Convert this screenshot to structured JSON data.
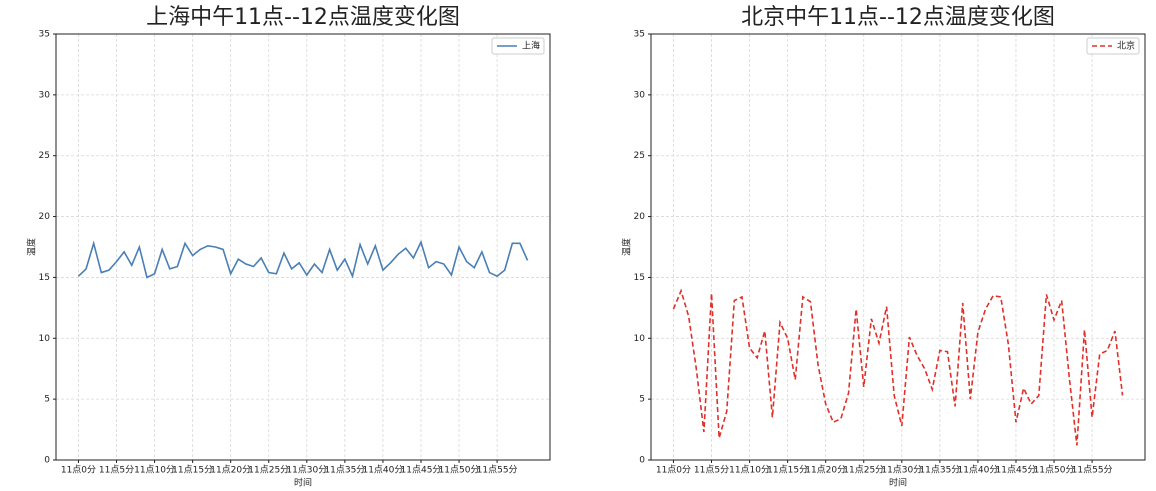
{
  "chart_data": [
    {
      "type": "line",
      "title": "上海中午11点--12点温度变化图",
      "x_label": "时间",
      "y_label": "温度",
      "categories": [
        "11点0分",
        null,
        null,
        null,
        null,
        "11点5分",
        null,
        null,
        null,
        null,
        "11点10分",
        null,
        null,
        null,
        null,
        "11点15分",
        null,
        null,
        null,
        null,
        "11点20分",
        null,
        null,
        null,
        null,
        "11点25分",
        null,
        null,
        null,
        null,
        "11点30分",
        null,
        null,
        null,
        null,
        "11点35分",
        null,
        null,
        null,
        null,
        "11点40分",
        null,
        null,
        null,
        null,
        "11点45分",
        null,
        null,
        null,
        null,
        "11点50分",
        null,
        null,
        null,
        null,
        "11点55分",
        null,
        null,
        null,
        null
      ],
      "series": [
        {
          "name": "上海",
          "color": "#4a7fb5",
          "line_style": "solid",
          "values": [
            15.1,
            15.7,
            17.8,
            15.4,
            15.6,
            16.3,
            17.1,
            16.0,
            17.5,
            15.0,
            15.3,
            17.3,
            15.7,
            15.9,
            17.8,
            16.8,
            17.3,
            17.6,
            17.5,
            17.3,
            15.3,
            16.5,
            16.1,
            15.9,
            16.6,
            15.4,
            15.3,
            17.0,
            15.7,
            16.2,
            15.2,
            16.1,
            15.4,
            17.3,
            15.6,
            16.5,
            15.1,
            17.7,
            16.1,
            17.6,
            15.6,
            16.2,
            16.9,
            17.4,
            16.6,
            17.9,
            15.8,
            16.3,
            16.1,
            15.2,
            17.5,
            16.3,
            15.8,
            17.1,
            15.4,
            15.1,
            15.6,
            17.8,
            17.8,
            16.4
          ]
        }
      ],
      "ylim": [
        0,
        35
      ],
      "yticks": [
        0,
        5,
        10,
        15,
        20,
        25,
        30,
        35
      ],
      "grid": true,
      "legend": "upper-right"
    },
    {
      "type": "line",
      "title": "北京中午11点--12点温度变化图",
      "x_label": "时间",
      "y_label": "温度",
      "categories": [
        "11点0分",
        null,
        null,
        null,
        null,
        "11点5分",
        null,
        null,
        null,
        null,
        "11点10分",
        null,
        null,
        null,
        null,
        "11点15分",
        null,
        null,
        null,
        null,
        "11点20分",
        null,
        null,
        null,
        null,
        "11点25分",
        null,
        null,
        null,
        null,
        "11点30分",
        null,
        null,
        null,
        null,
        "11点35分",
        null,
        null,
        null,
        null,
        "11点40分",
        null,
        null,
        null,
        null,
        "11点45分",
        null,
        null,
        null,
        null,
        "11点50分",
        null,
        null,
        null,
        null,
        "11点55分",
        null,
        null,
        null,
        null
      ],
      "series": [
        {
          "name": "北京",
          "color": "#e0302a",
          "line_style": "dashed",
          "values": [
            12.4,
            13.9,
            11.8,
            7.5,
            2.3,
            13.7,
            1.8,
            4.0,
            13.1,
            13.4,
            9.2,
            8.4,
            10.6,
            3.5,
            11.3,
            10.0,
            6.6,
            13.4,
            13.0,
            7.8,
            4.6,
            3.1,
            3.4,
            5.5,
            12.4,
            6.0,
            11.6,
            9.6,
            12.6,
            5.3,
            2.8,
            10.1,
            8.6,
            7.5,
            5.8,
            9.0,
            8.9,
            4.4,
            12.9,
            5.0,
            10.5,
            12.4,
            13.5,
            13.4,
            9.5,
            3.1,
            5.9,
            4.6,
            5.3,
            13.6,
            11.5,
            13.1,
            6.8,
            1.2,
            10.7,
            3.5,
            8.7,
            9.0,
            10.6,
            5.3
          ]
        }
      ],
      "ylim": [
        0,
        35
      ],
      "yticks": [
        0,
        5,
        10,
        15,
        20,
        25,
        30,
        35
      ],
      "grid": true,
      "legend": "upper-right"
    }
  ]
}
